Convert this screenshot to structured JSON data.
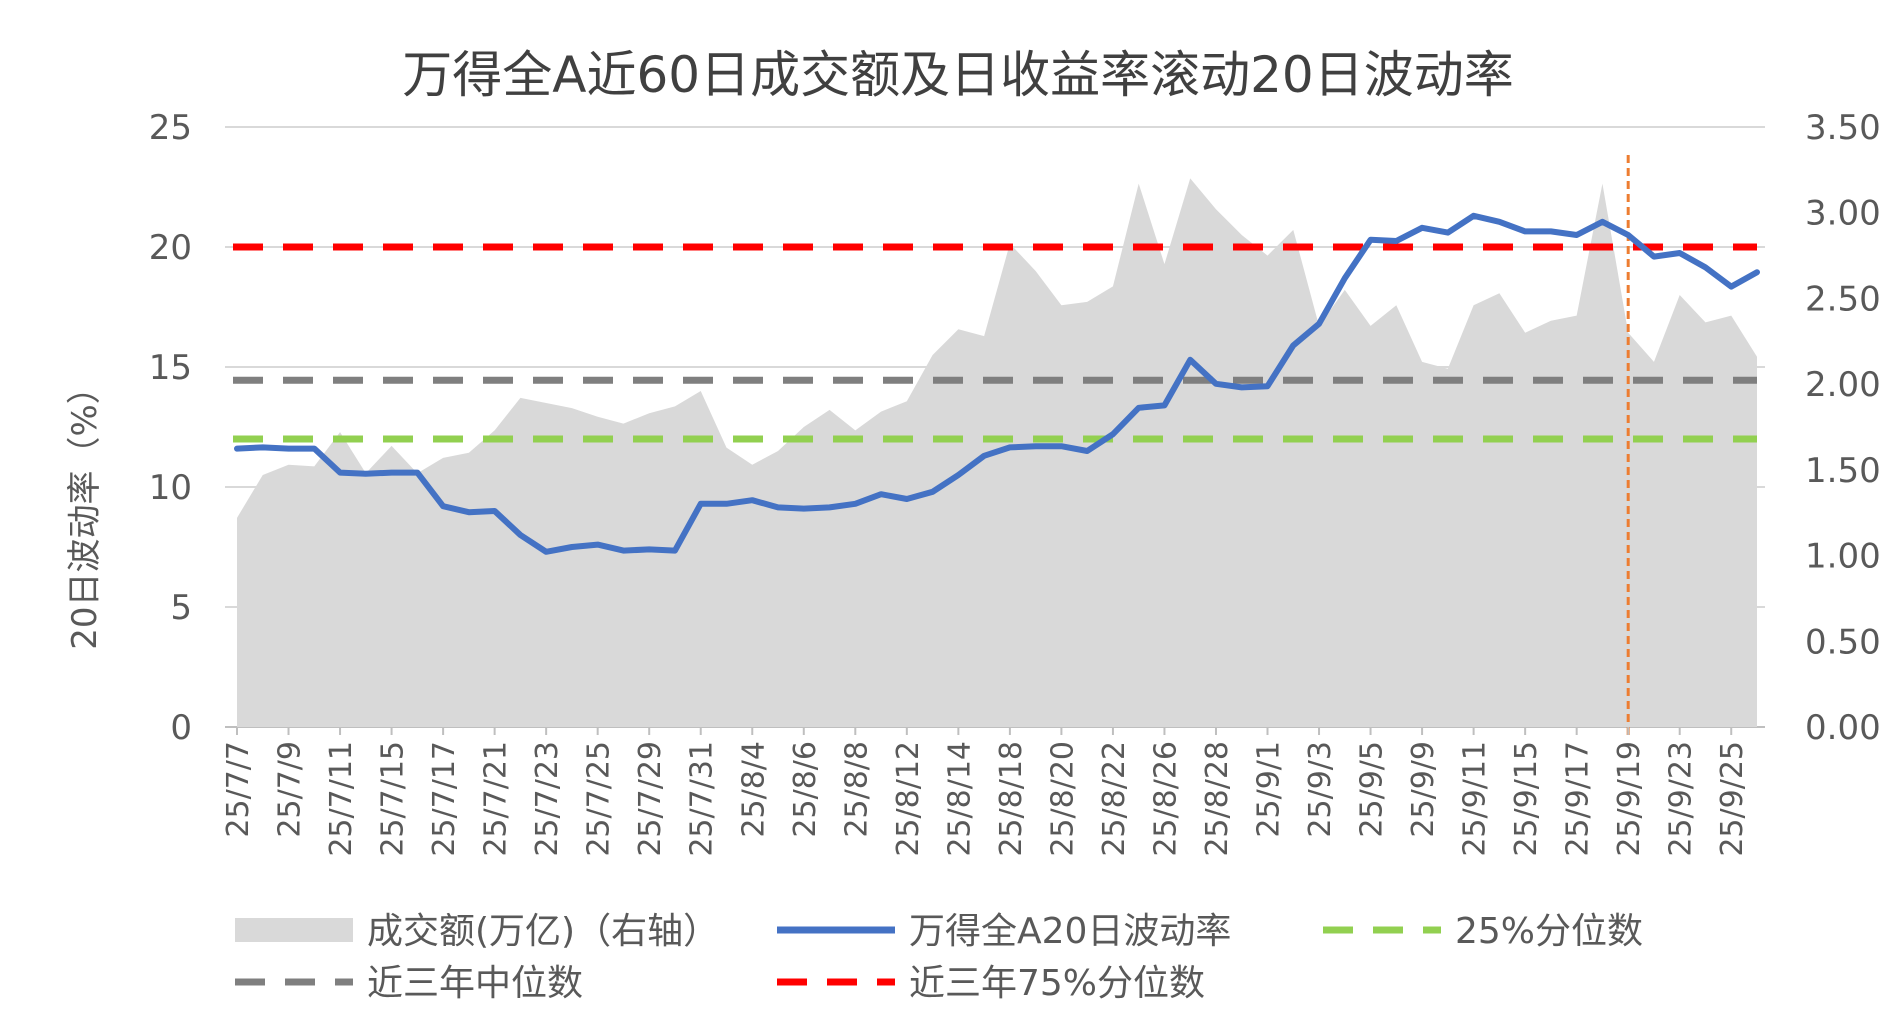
{
  "chart_data": {
    "type": "line",
    "title": "万得全A近60日成交额及日收益率滚动20日波动率",
    "ylabel_left": "20日波动率（%）",
    "ylim_left": [
      0,
      25
    ],
    "yticks_left": [
      "0",
      "5",
      "10",
      "15",
      "20",
      "25"
    ],
    "ylim_right": [
      0,
      3.5
    ],
    "yticks_right": [
      "0.00",
      "0.50",
      "1.00",
      "1.50",
      "2.00",
      "2.50",
      "3.00",
      "3.50"
    ],
    "x_tick_labels": [
      "25/7/7",
      "25/7/9",
      "25/7/11",
      "25/7/15",
      "25/7/17",
      "25/7/21",
      "25/7/23",
      "25/7/25",
      "25/7/29",
      "25/7/31",
      "25/8/4",
      "25/8/6",
      "25/8/8",
      "25/8/12",
      "25/8/14",
      "25/8/18",
      "25/8/20",
      "25/8/22",
      "25/8/26",
      "25/8/28",
      "25/9/1",
      "25/9/3",
      "25/9/5",
      "25/9/9",
      "25/9/11",
      "25/9/15",
      "25/9/17",
      "25/9/19",
      "25/9/23",
      "25/9/25"
    ],
    "grid": true,
    "legend_position": "bottom",
    "marker_line": {
      "x_label": "25/9/19",
      "color": "#ED7D31"
    },
    "series": [
      {
        "name": "成交额(万亿)（右轴）",
        "type": "area",
        "axis": "right",
        "color": "#D9D9D9",
        "values": [
          1.22,
          1.47,
          1.53,
          1.52,
          1.72,
          1.48,
          1.64,
          1.48,
          1.57,
          1.6,
          1.73,
          1.92,
          1.89,
          1.86,
          1.81,
          1.77,
          1.83,
          1.87,
          1.96,
          1.63,
          1.53,
          1.61,
          1.75,
          1.85,
          1.73,
          1.84,
          1.9,
          2.17,
          2.32,
          2.28,
          2.82,
          2.66,
          2.46,
          2.48,
          2.57,
          3.17,
          2.7,
          3.2,
          3.02,
          2.87,
          2.75,
          2.9,
          2.34,
          2.55,
          2.34,
          2.46,
          2.13,
          2.09,
          2.46,
          2.53,
          2.3,
          2.37,
          2.4,
          3.17,
          2.3,
          2.13,
          2.52,
          2.36,
          2.4,
          2.16
        ]
      },
      {
        "name": "万得全A20日波动率",
        "type": "line",
        "axis": "left",
        "color": "#4472C4",
        "values": [
          11.6,
          11.65,
          11.6,
          11.6,
          10.6,
          10.55,
          10.6,
          10.6,
          9.2,
          8.95,
          9.0,
          8.0,
          7.3,
          7.5,
          7.6,
          7.35,
          7.4,
          7.35,
          9.3,
          9.3,
          9.45,
          9.15,
          9.1,
          9.15,
          9.3,
          9.7,
          9.5,
          9.8,
          10.5,
          11.3,
          11.65,
          11.7,
          11.7,
          11.5,
          12.2,
          13.3,
          13.4,
          15.3,
          14.3,
          14.15,
          14.2,
          15.9,
          16.8,
          18.7,
          20.3,
          20.25,
          20.8,
          20.6,
          21.3,
          21.05,
          20.65,
          20.65,
          20.5,
          21.05,
          20.5,
          19.6,
          19.75,
          19.15,
          18.35,
          18.95
        ]
      },
      {
        "name": "25%分位数",
        "type": "hline",
        "axis": "left",
        "color": "#92D050",
        "value": 12.0
      },
      {
        "name": "近三年中位数",
        "type": "hline",
        "axis": "left",
        "color": "#7F7F7F",
        "value": 14.45
      },
      {
        "name": "近三年75%分位数",
        "type": "hline",
        "axis": "left",
        "color": "#FF0000",
        "value": 20.0
      }
    ]
  }
}
